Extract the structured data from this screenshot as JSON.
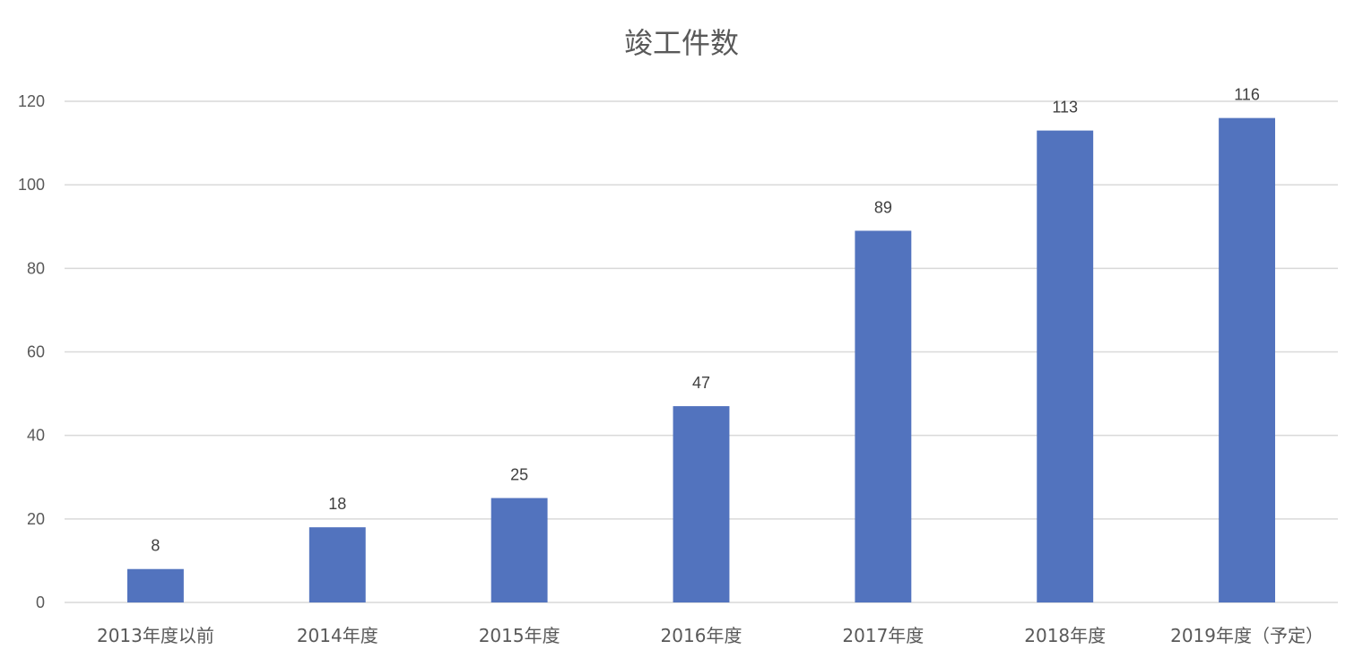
{
  "chart_data": {
    "type": "bar",
    "title": "竣工件数",
    "categories": [
      "2013年度以前",
      "2014年度",
      "2015年度",
      "2016年度",
      "2017年度",
      "2018年度",
      "2019年度（予定）"
    ],
    "values": [
      8,
      18,
      25,
      47,
      89,
      113,
      116
    ],
    "data_labels": [
      "8",
      "18",
      "25",
      "47",
      "89",
      "113",
      "116"
    ],
    "xlabel": "",
    "ylabel": "",
    "ylim": [
      0,
      120
    ],
    "y_ticks": [
      0,
      20,
      40,
      60,
      80,
      100,
      120
    ],
    "y_tick_labels": [
      "0",
      "20",
      "40",
      "60",
      "80",
      "100",
      "120"
    ],
    "grid": true,
    "bar_color": "#5273BE",
    "legend": "none"
  }
}
